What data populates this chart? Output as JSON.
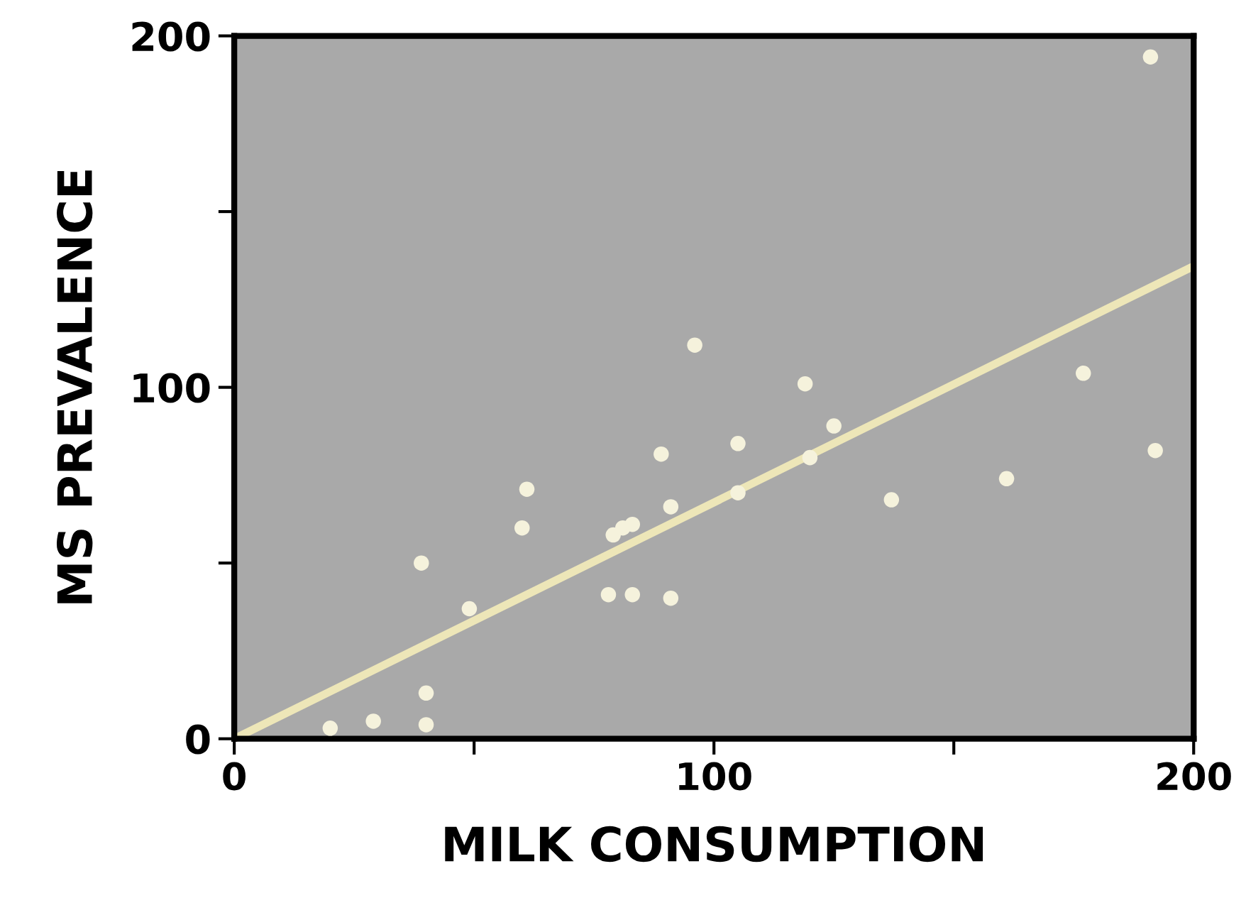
{
  "chart_data": {
    "type": "scatter",
    "xlabel": "MILK CONSUMPTION",
    "ylabel": "MS PREVALENCE",
    "xlim": [
      0,
      200
    ],
    "ylim": [
      0,
      200
    ],
    "xticks": [
      0,
      {
        "value": 50,
        "label": null
      },
      100,
      {
        "value": 150,
        "label": null
      },
      200
    ],
    "yticks": [
      0,
      {
        "value": 50,
        "label": null
      },
      100,
      {
        "value": 150,
        "label": null
      },
      200
    ],
    "grid": false,
    "series": [
      {
        "marker": "circle",
        "color": "#f5f2dc",
        "x": [
          20,
          29,
          40,
          40,
          39,
          49,
          60,
          61,
          78,
          83,
          91,
          79,
          81,
          83,
          89,
          91,
          96,
          105,
          105,
          119,
          120,
          125,
          137,
          161,
          177,
          192,
          191
        ],
        "values": [
          3,
          5,
          4,
          13,
          50,
          37,
          60,
          71,
          41,
          41,
          40,
          58,
          60,
          61,
          81,
          66,
          112,
          84,
          70,
          101,
          80,
          89,
          68,
          74,
          104,
          82,
          194
        ]
      },
      {
        "type": "line",
        "marker": "none",
        "color": "#ede6b8",
        "x": [
          0,
          200
        ],
        "values": [
          0,
          134.5
        ]
      }
    ]
  }
}
